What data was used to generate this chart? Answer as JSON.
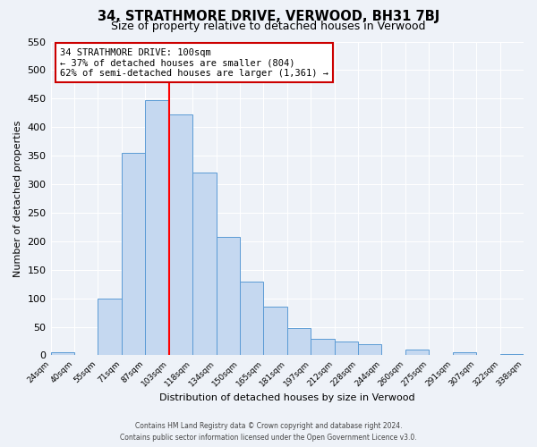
{
  "title": "34, STRATHMORE DRIVE, VERWOOD, BH31 7BJ",
  "subtitle": "Size of property relative to detached houses in Verwood",
  "xlabel": "Distribution of detached houses by size in Verwood",
  "ylabel": "Number of detached properties",
  "bar_labels": [
    "24sqm",
    "40sqm",
    "55sqm",
    "71sqm",
    "87sqm",
    "103sqm",
    "118sqm",
    "134sqm",
    "150sqm",
    "165sqm",
    "181sqm",
    "197sqm",
    "212sqm",
    "228sqm",
    "244sqm",
    "260sqm",
    "275sqm",
    "291sqm",
    "307sqm",
    "322sqm",
    "338sqm"
  ],
  "bar_values": [
    5,
    0,
    100,
    355,
    448,
    423,
    321,
    207,
    130,
    85,
    48,
    29,
    24,
    20,
    0,
    10,
    0,
    5,
    0,
    3
  ],
  "bar_color": "#c5d8f0",
  "bar_edge_color": "#5b9bd5",
  "vline_x": 5,
  "vline_color": "red",
  "ylim": [
    0,
    550
  ],
  "yticks": [
    0,
    50,
    100,
    150,
    200,
    250,
    300,
    350,
    400,
    450,
    500,
    550
  ],
  "annotation_title": "34 STRATHMORE DRIVE: 100sqm",
  "annotation_line1": "← 37% of detached houses are smaller (804)",
  "annotation_line2": "62% of semi-detached houses are larger (1,361) →",
  "annotation_box_color": "#ffffff",
  "annotation_box_edge": "#cc0000",
  "footer1": "Contains HM Land Registry data © Crown copyright and database right 2024.",
  "footer2": "Contains public sector information licensed under the Open Government Licence v3.0.",
  "bg_color": "#eef2f8",
  "grid_color": "#ffffff"
}
